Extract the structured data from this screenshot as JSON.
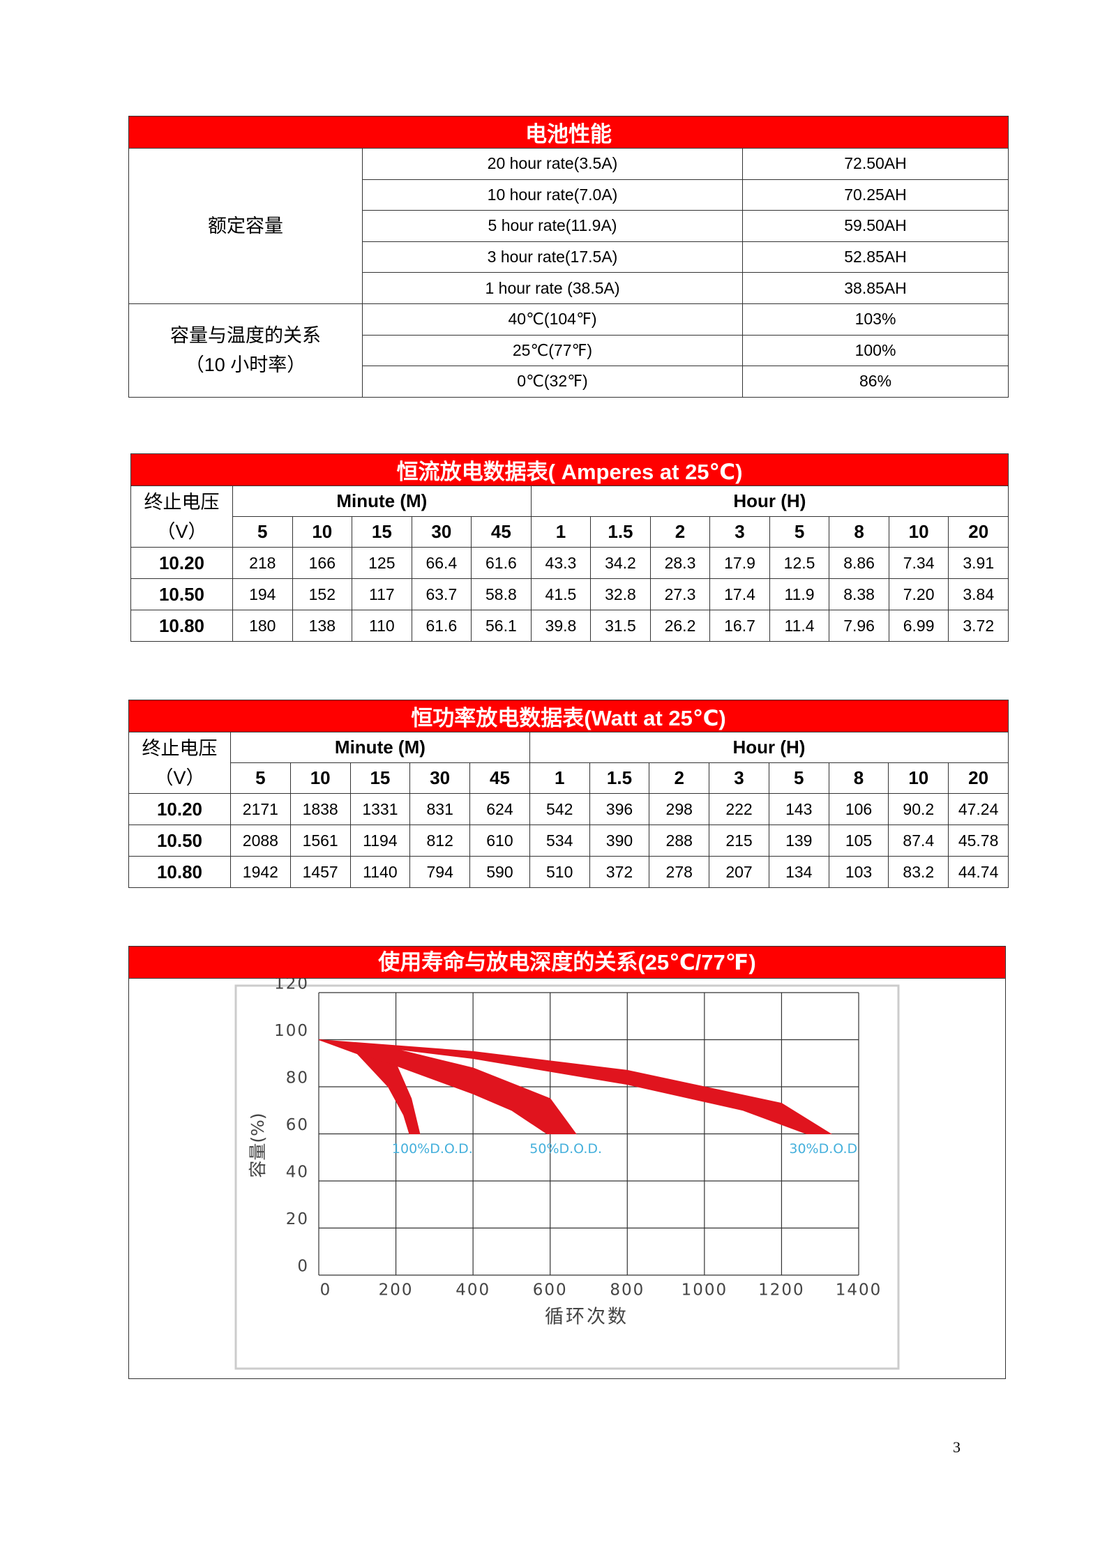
{
  "table1": {
    "title": "电池性能",
    "groups": [
      {
        "label": [
          "额定容量"
        ],
        "rows": [
          [
            "20 hour rate(3.5A)",
            "72.50AH"
          ],
          [
            "10 hour rate(7.0A)",
            "70.25AH"
          ],
          [
            "5 hour rate(11.9A)",
            "59.50AH"
          ],
          [
            "3 hour rate(17.5A)",
            "52.85AH"
          ],
          [
            "1 hour rate (38.5A)",
            "38.85AH"
          ]
        ]
      },
      {
        "label": [
          "容量与温度的关系",
          "（10 小时率）"
        ],
        "rows": [
          [
            "40℃(104℉)",
            "103%"
          ],
          [
            "25℃(77℉)",
            "100%"
          ],
          [
            "0℃(32℉)",
            "86%"
          ]
        ]
      }
    ]
  },
  "table2": {
    "title": "恒流放电数据表( Amperes at 25℃)",
    "voltage_header": [
      "终止电压",
      "（V）"
    ],
    "column_groups": [
      {
        "label": "Minute (M)",
        "columns": [
          "5",
          "10",
          "15",
          "30",
          "45"
        ]
      },
      {
        "label": "Hour (H)",
        "columns": [
          "1",
          "1.5",
          "2",
          "3",
          "5",
          "8",
          "10",
          "20"
        ]
      }
    ],
    "rows": [
      {
        "voltage": "10.20",
        "values": [
          "218",
          "166",
          "125",
          "66.4",
          "61.6",
          "43.3",
          "34.2",
          "28.3",
          "17.9",
          "12.5",
          "8.86",
          "7.34",
          "3.91"
        ]
      },
      {
        "voltage": "10.50",
        "values": [
          "194",
          "152",
          "117",
          "63.7",
          "58.8",
          "41.5",
          "32.8",
          "27.3",
          "17.4",
          "11.9",
          "8.38",
          "7.20",
          "3.84"
        ]
      },
      {
        "voltage": "10.80",
        "values": [
          "180",
          "138",
          "110",
          "61.6",
          "56.1",
          "39.8",
          "31.5",
          "26.2",
          "16.7",
          "11.4",
          "7.96",
          "6.99",
          "3.72"
        ]
      }
    ]
  },
  "table3": {
    "title": "恒功率放电数据表(Watt at 25℃)",
    "voltage_header": [
      "终止电压",
      "（V）"
    ],
    "column_groups": [
      {
        "label": "Minute (M)",
        "columns": [
          "5",
          "10",
          "15",
          "30",
          "45"
        ]
      },
      {
        "label": "Hour (H)",
        "columns": [
          "1",
          "1.5",
          "2",
          "3",
          "5",
          "8",
          "10",
          "20"
        ]
      }
    ],
    "rows": [
      {
        "voltage": "10.20",
        "values": [
          "2171",
          "1838",
          "1331",
          "831",
          "624",
          "542",
          "396",
          "298",
          "222",
          "143",
          "106",
          "90.2",
          "47.24"
        ]
      },
      {
        "voltage": "10.50",
        "values": [
          "2088",
          "1561",
          "1194",
          "812",
          "610",
          "534",
          "390",
          "288",
          "215",
          "139",
          "105",
          "87.4",
          "45.78"
        ]
      },
      {
        "voltage": "10.80",
        "values": [
          "1942",
          "1457",
          "1140",
          "794",
          "590",
          "510",
          "372",
          "278",
          "207",
          "134",
          "103",
          "83.2",
          "44.74"
        ]
      }
    ]
  },
  "chart_data": {
    "type": "band",
    "title": "使用寿命与放电深度的关系(25℃/77℉)",
    "x_label": "循环次数",
    "y_label": "容量(%)",
    "xlim": [
      0,
      1400
    ],
    "xticks": [
      0,
      200,
      400,
      600,
      800,
      1000,
      1200,
      1400
    ],
    "ylim": [
      0,
      120
    ],
    "yticks": [
      0,
      20,
      40,
      60,
      80,
      100,
      120
    ],
    "grid": true,
    "label_color": "#45b0dc",
    "series": [
      {
        "name": "100%D.O.D.",
        "color": "#e0141e",
        "upper": {
          "x": [
            0,
            100,
            200,
            240,
            262
          ],
          "y": [
            100,
            98,
            90,
            75,
            60
          ]
        },
        "lower": {
          "x": [
            0,
            100,
            180,
            220,
            235
          ],
          "y": [
            100,
            94,
            80,
            68,
            60
          ]
        }
      },
      {
        "name": "50%D.O.D.",
        "color": "#e0141e",
        "upper": {
          "x": [
            0,
            200,
            400,
            600,
            667
          ],
          "y": [
            100,
            96,
            88,
            75,
            60
          ]
        },
        "lower": {
          "x": [
            0,
            200,
            400,
            500,
            592
          ],
          "y": [
            100,
            89,
            77,
            70,
            60
          ]
        }
      },
      {
        "name": "30%D.O.D",
        "color": "#e0141e",
        "upper": {
          "x": [
            0,
            400,
            800,
            1200,
            1328
          ],
          "y": [
            100,
            95,
            87,
            73,
            60
          ]
        },
        "lower": {
          "x": [
            0,
            400,
            800,
            1100,
            1265
          ],
          "y": [
            100,
            92,
            81,
            70,
            60
          ]
        }
      }
    ]
  },
  "page_number": "3"
}
